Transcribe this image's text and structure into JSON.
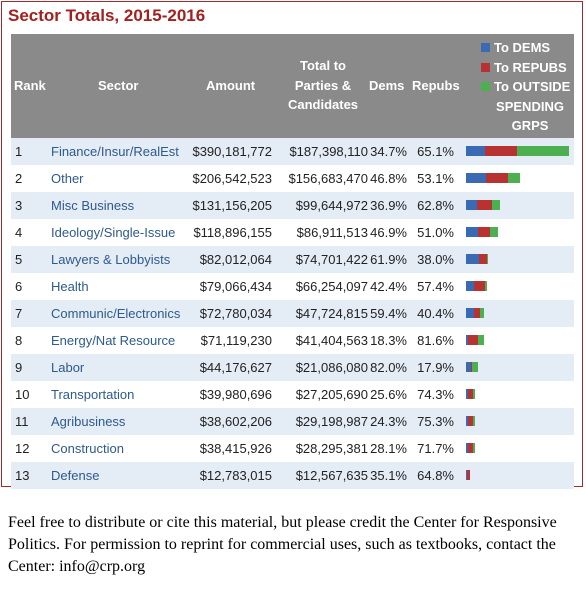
{
  "title": "Sector Totals, 2015-2016",
  "headers": {
    "rank": "Rank",
    "sector": "Sector",
    "amount": "Amount",
    "total_line1": "Total to",
    "total_line2": "Parties &",
    "total_line3": "Candidates",
    "dems": "Dems",
    "repubs": "Repubs"
  },
  "legend": {
    "dems": "To DEMS",
    "repubs": "To REPUBS",
    "outside_line1": "To OUTSIDE",
    "outside_line2": "SPENDING",
    "outside_line3": "GRPS"
  },
  "colors": {
    "dems": "#3a6ab4",
    "repubs": "#b83232",
    "outside": "#4caf50",
    "header": "#8a8a8a",
    "title": "#a2201f"
  },
  "rows": [
    {
      "rank": "1",
      "sector": "Finance/Insur/RealEst",
      "amount": "$390,181,772",
      "total": "$187,398,110",
      "dems": "34.7%",
      "repubs": "65.1%"
    },
    {
      "rank": "2",
      "sector": "Other",
      "amount": "$206,542,523",
      "total": "$156,683,470",
      "dems": "46.8%",
      "repubs": "53.1%"
    },
    {
      "rank": "3",
      "sector": "Misc Business",
      "amount": "$131,156,205",
      "total": "$99,644,972",
      "dems": "36.9%",
      "repubs": "62.8%"
    },
    {
      "rank": "4",
      "sector": "Ideology/Single-Issue",
      "amount": "$118,896,155",
      "total": "$86,911,513",
      "dems": "46.9%",
      "repubs": "51.0%"
    },
    {
      "rank": "5",
      "sector": "Lawyers & Lobbyists",
      "amount": "$82,012,064",
      "total": "$74,701,422",
      "dems": "61.9%",
      "repubs": "38.0%"
    },
    {
      "rank": "6",
      "sector": "Health",
      "amount": "$79,066,434",
      "total": "$66,254,097",
      "dems": "42.4%",
      "repubs": "57.4%"
    },
    {
      "rank": "7",
      "sector": "Communic/Electronics",
      "amount": "$72,780,034",
      "total": "$47,724,815",
      "dems": "59.4%",
      "repubs": "40.4%"
    },
    {
      "rank": "8",
      "sector": "Energy/Nat Resource",
      "amount": "$71,119,230",
      "total": "$41,404,563",
      "dems": "18.3%",
      "repubs": "81.6%"
    },
    {
      "rank": "9",
      "sector": "Labor",
      "amount": "$44,176,627",
      "total": "$21,086,080",
      "dems": "82.0%",
      "repubs": "17.9%"
    },
    {
      "rank": "10",
      "sector": "Transportation",
      "amount": "$39,980,696",
      "total": "$27,205,690",
      "dems": "25.6%",
      "repubs": "74.3%"
    },
    {
      "rank": "11",
      "sector": "Agribusiness",
      "amount": "$38,602,206",
      "total": "$29,198,987",
      "dems": "24.3%",
      "repubs": "75.3%"
    },
    {
      "rank": "12",
      "sector": "Construction",
      "amount": "$38,415,926",
      "total": "$28,295,381",
      "dems": "28.1%",
      "repubs": "71.7%"
    },
    {
      "rank": "13",
      "sector": "Defense",
      "amount": "$12,783,015",
      "total": "$12,567,635",
      "dems": "35.1%",
      "repubs": "64.8%"
    }
  ],
  "footer": "Feel free to distribute or cite this material, but please credit the Center for Responsive Politics. For permission to reprint for commercial uses, such as textbooks, contact the Center: info@crp.org"
}
